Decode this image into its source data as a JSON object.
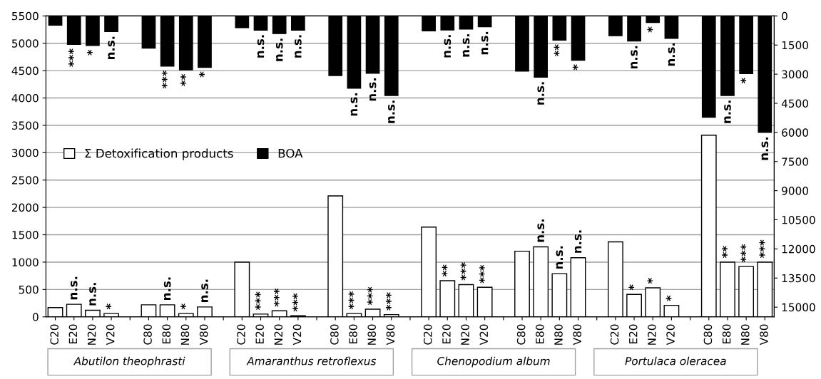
{
  "chart_data": {
    "type": "bar",
    "categories": [
      "C20",
      "E20",
      "N20",
      "V20",
      null,
      "C80",
      "E80",
      "N80",
      "V80",
      null,
      "C20",
      "E20",
      "N20",
      "V20",
      null,
      "C80",
      "E80",
      "N80",
      "V80",
      null,
      "C20",
      "E20",
      "N20",
      "V20",
      null,
      "C80",
      "E80",
      "N80",
      "V80",
      null,
      "C20",
      "E20",
      "N20",
      "V20",
      null,
      "C80",
      "E80",
      "N80",
      "V80"
    ],
    "series": [
      {
        "name": "Σ Detoxification products",
        "color": "#ffffff",
        "values": [
          170,
          230,
          120,
          60,
          null,
          220,
          220,
          60,
          180,
          null,
          1000,
          50,
          110,
          20,
          null,
          2210,
          60,
          140,
          40,
          null,
          1640,
          660,
          590,
          540,
          null,
          1200,
          1280,
          790,
          1080,
          null,
          1370,
          410,
          530,
          210,
          null,
          3320,
          1000,
          920,
          1000
        ],
        "value_labels": [
          null,
          "n.s.",
          "n.s.",
          "*",
          null,
          null,
          "n.s.",
          "*",
          "n.s.",
          null,
          null,
          "***",
          "***",
          "***",
          null,
          null,
          "***",
          "***",
          "***",
          null,
          null,
          "**",
          "***",
          "***",
          null,
          null,
          "n.s.",
          "n.s.",
          "n.s.",
          null,
          null,
          "*",
          "*",
          "*",
          null,
          null,
          "**",
          "***",
          "***"
        ]
      },
      {
        "name": "BOA",
        "color": "#000000",
        "axis": "y2",
        "values": [
          480,
          1470,
          1520,
          810,
          null,
          1660,
          2590,
          2780,
          2650,
          null,
          600,
          730,
          910,
          730,
          null,
          3070,
          3720,
          2950,
          4100,
          null,
          770,
          720,
          680,
          560,
          null,
          2840,
          3150,
          1250,
          2280,
          null,
          1020,
          1290,
          340,
          1150,
          null,
          5220,
          4100,
          2970,
          6000
        ],
        "value_labels": [
          null,
          "***",
          "*",
          "n.s.",
          null,
          null,
          "***",
          "**",
          "*",
          null,
          null,
          "n.s.",
          "n.s.",
          "n.s.",
          null,
          null,
          "n.s.",
          "n.s.",
          "n.s.",
          null,
          null,
          "n.s.",
          "n.s.",
          "n.s.",
          null,
          null,
          "n.s.",
          "**",
          "*",
          null,
          null,
          "n.s.",
          "*",
          "n.s.",
          null,
          null,
          "n.s.",
          "*",
          "n.s."
        ]
      }
    ],
    "ylim": [
      0,
      5500
    ],
    "yticks": [
      0,
      500,
      1000,
      1500,
      2000,
      2500,
      3000,
      3500,
      4000,
      4500,
      5000,
      5500
    ],
    "y2lim": [
      15500,
      0
    ],
    "y2ticks": [
      0,
      1500,
      3000,
      4500,
      6000,
      7500,
      9000,
      10500,
      12000,
      13500,
      15000
    ],
    "grid": "y",
    "legend": "left",
    "annotations": [
      "Abutilon theophrasti",
      "Amaranthus retroflexus",
      "Chenopodium album",
      "Portulaca oleracea"
    ]
  }
}
